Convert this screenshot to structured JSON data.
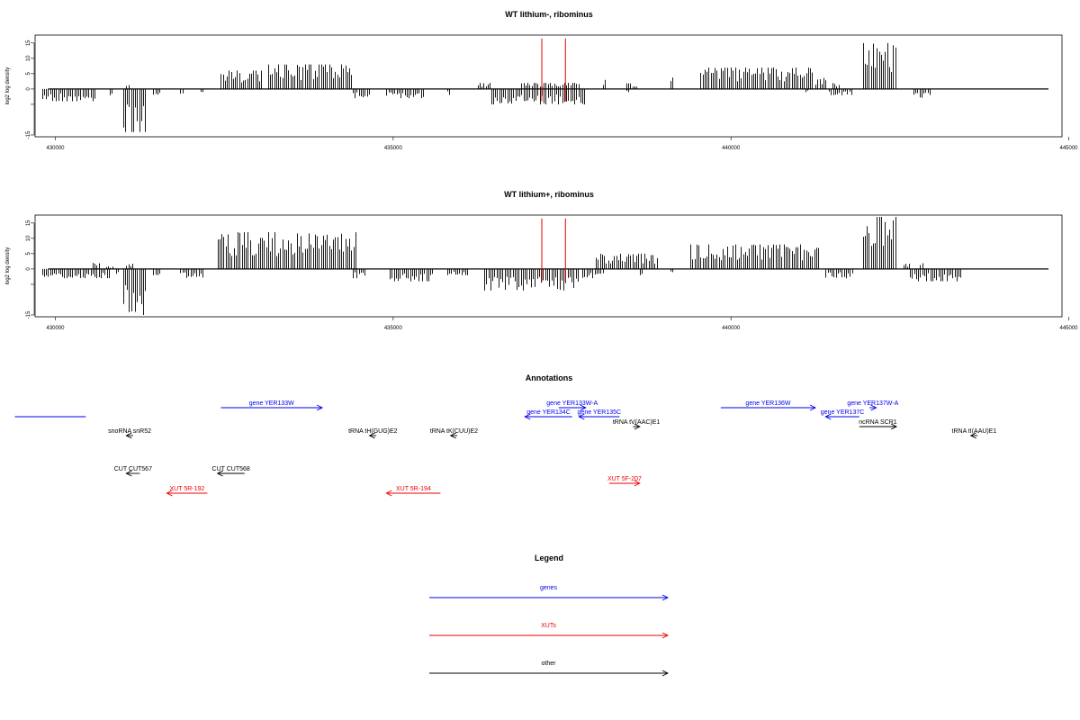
{
  "chart_data": [
    {
      "type": "bar",
      "title": "WT lithium-, ribominus",
      "ylabel": "log2 log density",
      "ylim": [
        -15,
        17
      ],
      "xlim": [
        429700,
        444900
      ],
      "xticks": [
        430000,
        435000,
        440000,
        445000
      ],
      "yticks": [
        -15,
        -5,
        0,
        5,
        10,
        15
      ],
      "yticklabels": [
        "-15",
        "",
        "0",
        "5",
        "10",
        "15"
      ],
      "markers": [
        437200,
        437550
      ],
      "marker_color": "#e00000",
      "series": [
        {
          "sign": "positive",
          "segments": [
            {
              "from": 431050,
              "to": 431100,
              "peak": 2
            },
            {
              "from": 432450,
              "to": 433050,
              "peak": 6
            },
            {
              "from": 433150,
              "to": 434400,
              "peak": 8
            },
            {
              "from": 436250,
              "to": 436450,
              "peak": 2
            },
            {
              "from": 436900,
              "to": 437750,
              "peak": 2
            },
            {
              "from": 438100,
              "to": 438150,
              "peak": 3
            },
            {
              "from": 438450,
              "to": 438600,
              "peak": 2
            },
            {
              "from": 439100,
              "to": 439150,
              "peak": 4
            },
            {
              "from": 439550,
              "to": 441200,
              "peak": 7
            },
            {
              "from": 441250,
              "to": 441400,
              "peak": 4
            },
            {
              "from": 441500,
              "to": 441600,
              "peak": 2
            },
            {
              "from": 441950,
              "to": 442450,
              "peak": 15
            }
          ]
        },
        {
          "sign": "negative",
          "segments": [
            {
              "from": 429800,
              "to": 430600,
              "peak": 4
            },
            {
              "from": 430800,
              "to": 430850,
              "peak": 2
            },
            {
              "from": 431000,
              "to": 431350,
              "peak": 14
            },
            {
              "from": 431450,
              "to": 431550,
              "peak": 2
            },
            {
              "from": 431850,
              "to": 431900,
              "peak": 2
            },
            {
              "from": 432150,
              "to": 432200,
              "peak": 1
            },
            {
              "from": 434400,
              "to": 434650,
              "peak": 3
            },
            {
              "from": 434900,
              "to": 435450,
              "peak": 3
            },
            {
              "from": 435800,
              "to": 435850,
              "peak": 2
            },
            {
              "from": 436450,
              "to": 437850,
              "peak": 5
            },
            {
              "from": 438450,
              "to": 438500,
              "peak": 1
            },
            {
              "from": 441100,
              "to": 441150,
              "peak": 1
            },
            {
              "from": 441450,
              "to": 441800,
              "peak": 2
            },
            {
              "from": 442700,
              "to": 442950,
              "peak": 3
            }
          ]
        }
      ]
    },
    {
      "type": "bar",
      "title": "WT lithium+, ribominus",
      "ylabel": "log2 log density",
      "ylim": [
        -15,
        17
      ],
      "xlim": [
        429700,
        444900
      ],
      "xticks": [
        430000,
        435000,
        440000,
        445000
      ],
      "yticks": [
        -15,
        -5,
        0,
        5,
        10,
        15
      ],
      "yticklabels": [
        "-15",
        "",
        "0",
        "5",
        "10",
        "15"
      ],
      "markers": [
        437200,
        437550
      ],
      "marker_color": "#e00000",
      "series": [
        {
          "sign": "positive",
          "segments": [
            {
              "from": 430550,
              "to": 430650,
              "peak": 2
            },
            {
              "from": 430750,
              "to": 430850,
              "peak": 1
            },
            {
              "from": 431050,
              "to": 431150,
              "peak": 2
            },
            {
              "from": 432400,
              "to": 434450,
              "peak": 12
            },
            {
              "from": 438000,
              "to": 438900,
              "peak": 5
            },
            {
              "from": 439400,
              "to": 441300,
              "peak": 8
            },
            {
              "from": 441950,
              "to": 442450,
              "peak": 17
            },
            {
              "from": 442550,
              "to": 442650,
              "peak": 2
            },
            {
              "from": 442800,
              "to": 442850,
              "peak": 2
            }
          ]
        },
        {
          "sign": "negative",
          "segments": [
            {
              "from": 429800,
              "to": 430800,
              "peak": 3
            },
            {
              "from": 430900,
              "to": 430950,
              "peak": 2
            },
            {
              "from": 431000,
              "to": 431350,
              "peak": 15
            },
            {
              "from": 431450,
              "to": 431550,
              "peak": 2
            },
            {
              "from": 431850,
              "to": 432200,
              "peak": 3
            },
            {
              "from": 434400,
              "to": 434600,
              "peak": 3
            },
            {
              "from": 434950,
              "to": 435600,
              "peak": 4
            },
            {
              "from": 435800,
              "to": 436100,
              "peak": 2
            },
            {
              "from": 436350,
              "to": 437750,
              "peak": 7
            },
            {
              "from": 437800,
              "to": 438100,
              "peak": 3
            },
            {
              "from": 438650,
              "to": 438700,
              "peak": 2
            },
            {
              "from": 439100,
              "to": 439150,
              "peak": 1
            },
            {
              "from": 441400,
              "to": 441800,
              "peak": 3
            },
            {
              "from": 442650,
              "to": 443400,
              "peak": 4
            }
          ]
        }
      ]
    },
    {
      "type": "annotation-track",
      "title": "Annotations",
      "features": [
        {
          "label": "",
          "type": "gene",
          "strand": "none",
          "start": 429400,
          "end": 430450,
          "row": 1
        },
        {
          "label": "gene YER133W",
          "type": "gene",
          "strand": "+",
          "start": 432450,
          "end": 433950,
          "row": 0
        },
        {
          "label": "gene YER133W-A",
          "type": "gene",
          "strand": "+",
          "start": 437450,
          "end": 437850,
          "row": 0
        },
        {
          "label": "gene YER134C",
          "type": "gene",
          "strand": "-",
          "start": 436950,
          "end": 437650,
          "row": 1
        },
        {
          "label": "gene YER135C",
          "type": "gene",
          "strand": "-",
          "start": 437750,
          "end": 438350,
          "row": 1
        },
        {
          "label": "gene YER136W",
          "type": "gene",
          "strand": "+",
          "start": 439850,
          "end": 441250,
          "row": 0
        },
        {
          "label": "gene YER137W-A",
          "type": "gene",
          "strand": "+",
          "start": 442050,
          "end": 442150,
          "row": 0
        },
        {
          "label": "gene YER137C",
          "type": "gene",
          "strand": "-",
          "start": 441400,
          "end": 441900,
          "row": 1
        },
        {
          "label": "snoRNA snR52",
          "type": "other",
          "strand": "-",
          "start": 431050,
          "end": 431150,
          "row": 3
        },
        {
          "label": "tRNA tH(GUG)E2",
          "type": "other",
          "strand": "-",
          "start": 434650,
          "end": 434750,
          "row": 3
        },
        {
          "label": "tRNA tK(CUU)E2",
          "type": "other",
          "strand": "-",
          "start": 435850,
          "end": 435950,
          "row": 3
        },
        {
          "label": "tRNA tV(AAC)E1",
          "type": "other",
          "strand": "+",
          "start": 438550,
          "end": 438650,
          "row": 2
        },
        {
          "label": "ncRNA SCR1",
          "type": "other",
          "strand": "+",
          "start": 441900,
          "end": 442450,
          "row": 2
        },
        {
          "label": "tRNA tI(AAU)E1",
          "type": "other",
          "strand": "-",
          "start": 443550,
          "end": 443650,
          "row": 3
        },
        {
          "label": "CUT CUT567",
          "type": "other",
          "strand": "-",
          "start": 431050,
          "end": 431250,
          "row": 4
        },
        {
          "label": "CUT CUT568",
          "type": "other",
          "strand": "-",
          "start": 432400,
          "end": 432800,
          "row": 4
        },
        {
          "label": "XUT 5R-192",
          "type": "XUTs",
          "strand": "-",
          "start": 431650,
          "end": 432250,
          "row": 5
        },
        {
          "label": "XUT 5R-194",
          "type": "XUTs",
          "strand": "-",
          "start": 434900,
          "end": 435700,
          "row": 5
        },
        {
          "label": "XUT 5F-207",
          "type": "XUTs",
          "strand": "+",
          "start": 438200,
          "end": 438650,
          "row": 6
        }
      ]
    },
    {
      "type": "legend",
      "title": "Legend",
      "entries": [
        {
          "label": "genes",
          "color": "#0000ee"
        },
        {
          "label": "XUTs",
          "color": "#ee0000"
        },
        {
          "label": "other",
          "color": "#000000"
        }
      ]
    }
  ]
}
